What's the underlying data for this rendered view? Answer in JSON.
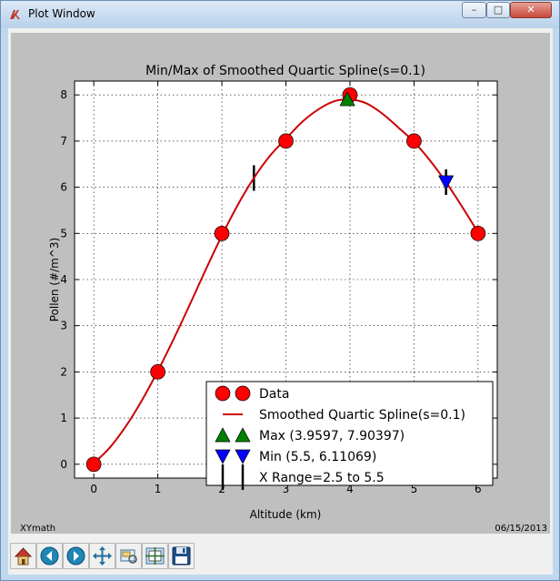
{
  "window": {
    "title": "Plot Window",
    "min_glyph": "–",
    "max_glyph": "□",
    "close_glyph": "✕",
    "icon": "tk-feather-icon"
  },
  "figure": {
    "footer_left": "XYmath",
    "footer_right": "06/15/2013"
  },
  "toolbar": {
    "buttons": [
      {
        "name": "home-button",
        "icon": "home-icon"
      },
      {
        "name": "back-button",
        "icon": "back-arrow-icon"
      },
      {
        "name": "forward-button",
        "icon": "forward-arrow-icon"
      },
      {
        "name": "pan-button",
        "icon": "move-icon"
      },
      {
        "name": "zoom-button",
        "icon": "zoom-rect-icon"
      },
      {
        "name": "subplots-button",
        "icon": "subplots-icon"
      },
      {
        "name": "save-button",
        "icon": "floppy-disk-icon"
      }
    ]
  },
  "chart_data": {
    "type": "line",
    "title": "Min/Max of Smoothed Quartic Spline(s=0.1)",
    "xlabel": "Altitude (km)",
    "ylabel": "Pollen (#/m^3)",
    "xlim": [
      -0.3,
      6.3
    ],
    "ylim": [
      -0.3,
      8.3
    ],
    "xticks": [
      0,
      1,
      2,
      3,
      4,
      5,
      6
    ],
    "yticks": [
      0,
      1,
      2,
      3,
      4,
      5,
      6,
      7,
      8
    ],
    "grid": true,
    "legend_position": "bottom-right",
    "colors": {
      "data": "#ff0000",
      "spline": "#cc0000",
      "max": "#008000",
      "min": "#0000ff",
      "range": "#000000"
    },
    "data": {
      "x": [
        0,
        1,
        2,
        3,
        4,
        5,
        6
      ],
      "y": [
        0,
        2,
        5,
        7,
        8,
        7,
        5
      ]
    },
    "spline": {
      "x": [
        0,
        0.25,
        0.5,
        0.75,
        1,
        1.25,
        1.5,
        1.75,
        2,
        2.25,
        2.5,
        2.75,
        3,
        3.25,
        3.5,
        3.75,
        4,
        4.25,
        4.5,
        4.75,
        5,
        5.25,
        5.5,
        5.75,
        6
      ],
      "y": [
        0.02,
        0.36,
        0.82,
        1.38,
        2.02,
        2.72,
        3.46,
        4.22,
        4.95,
        5.62,
        6.2,
        6.68,
        7.05,
        7.41,
        7.68,
        7.86,
        7.9,
        7.82,
        7.6,
        7.3,
        6.98,
        6.58,
        6.11,
        5.58,
        5.02
      ]
    },
    "max_point": {
      "x": 3.9597,
      "y": 7.90397
    },
    "min_point": {
      "x": 5.5,
      "y": 6.11069
    },
    "x_range": {
      "start": 2.5,
      "end": 5.5
    },
    "legend": [
      {
        "label": "Data",
        "kind": "circle"
      },
      {
        "label": "Smoothed Quartic Spline(s=0.1)",
        "kind": "line"
      },
      {
        "label": "Max (3.9597, 7.90397)",
        "kind": "triangle-up"
      },
      {
        "label": "Min (5.5, 6.11069)",
        "kind": "triangle-down"
      },
      {
        "label": "X Range=2.5 to 5.5",
        "kind": "vbar"
      }
    ]
  }
}
